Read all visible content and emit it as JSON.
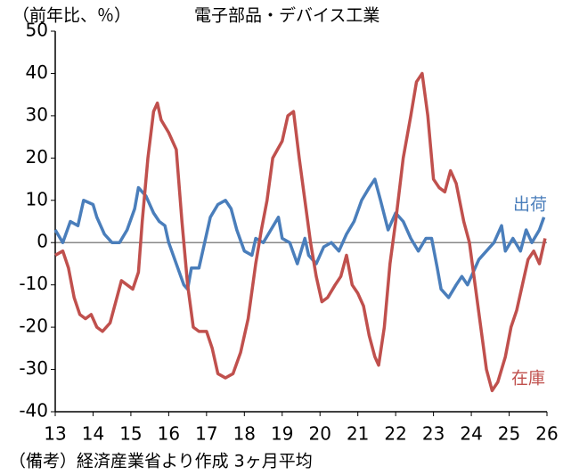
{
  "chart_data": {
    "type": "line",
    "title": "電子部品・デバイス工業",
    "y_label": "（前年比、％）",
    "note": "（備考）経済産業省より作成 3ヶ月平均",
    "xlim": [
      13,
      26
    ],
    "xticks": [
      13,
      14,
      15,
      16,
      17,
      18,
      19,
      20,
      21,
      22,
      23,
      24,
      25,
      26
    ],
    "ylim": [
      -40,
      50
    ],
    "yticks": [
      -40,
      -30,
      -20,
      -10,
      0,
      10,
      20,
      30,
      40,
      50
    ],
    "zero_line": true,
    "series": [
      {
        "name": "出荷",
        "color": "#4a7ebb",
        "x": [
          13.0,
          13.2,
          13.4,
          13.6,
          13.75,
          14.0,
          14.1,
          14.3,
          14.5,
          14.7,
          14.9,
          15.1,
          15.2,
          15.4,
          15.6,
          15.75,
          15.9,
          16.0,
          16.2,
          16.4,
          16.5,
          16.6,
          16.8,
          16.95,
          17.1,
          17.3,
          17.5,
          17.65,
          17.8,
          18.0,
          18.2,
          18.3,
          18.5,
          18.7,
          18.9,
          19.0,
          19.2,
          19.4,
          19.6,
          19.7,
          19.9,
          20.1,
          20.3,
          20.5,
          20.7,
          20.9,
          21.1,
          21.3,
          21.45,
          21.6,
          21.8,
          22.0,
          22.2,
          22.4,
          22.6,
          22.8,
          22.95,
          23.1,
          23.2,
          23.4,
          23.6,
          23.75,
          23.9,
          24.0,
          24.2,
          24.4,
          24.6,
          24.8,
          24.9,
          25.1,
          25.3,
          25.45,
          25.6,
          25.8,
          25.92
        ],
        "values": [
          3,
          0,
          5,
          4,
          10,
          9,
          6,
          2,
          0,
          0,
          3,
          8,
          13,
          11,
          7,
          5,
          4,
          0,
          -5,
          -10,
          -11,
          -6,
          -6,
          0,
          6,
          9,
          10,
          8,
          3,
          -2,
          -3,
          1,
          0,
          3,
          6,
          1,
          0,
          -5,
          1,
          -3,
          -5,
          -1,
          0,
          -2,
          2,
          5,
          10,
          13,
          15,
          10,
          3,
          7,
          5,
          1,
          -2,
          1,
          1,
          -6,
          -11,
          -13,
          -10,
          -8,
          -10,
          -8,
          -4,
          -2,
          0,
          4,
          -2,
          1,
          -2,
          3,
          0,
          3,
          6
        ]
      },
      {
        "name": "在庫",
        "color": "#c0504d",
        "x": [
          13.0,
          13.2,
          13.35,
          13.5,
          13.65,
          13.8,
          13.95,
          14.1,
          14.25,
          14.45,
          14.6,
          14.75,
          14.9,
          15.05,
          15.2,
          15.3,
          15.45,
          15.6,
          15.7,
          15.8,
          16.0,
          16.2,
          16.35,
          16.5,
          16.65,
          16.8,
          17.0,
          17.15,
          17.3,
          17.5,
          17.7,
          17.9,
          18.1,
          18.3,
          18.45,
          18.6,
          18.75,
          19.0,
          19.15,
          19.3,
          19.45,
          19.6,
          19.75,
          19.9,
          20.05,
          20.2,
          20.4,
          20.55,
          20.7,
          20.85,
          21.0,
          21.15,
          21.3,
          21.45,
          21.55,
          21.7,
          21.85,
          22.0,
          22.2,
          22.4,
          22.55,
          22.7,
          22.85,
          23.0,
          23.15,
          23.3,
          23.45,
          23.6,
          23.8,
          23.95,
          24.1,
          24.25,
          24.4,
          24.55,
          24.7,
          24.9,
          25.05,
          25.2,
          25.35,
          25.5,
          25.65,
          25.8,
          25.95
        ],
        "values": [
          -3,
          -2,
          -6,
          -13,
          -17,
          -18,
          -17,
          -20,
          -21,
          -19,
          -14,
          -9,
          -10,
          -11,
          -7,
          5,
          20,
          31,
          33,
          29,
          26,
          22,
          5,
          -10,
          -20,
          -21,
          -21,
          -25,
          -31,
          -32,
          -31,
          -26,
          -18,
          -5,
          3,
          10,
          20,
          24,
          30,
          31,
          20,
          10,
          0,
          -8,
          -14,
          -13,
          -10,
          -8,
          -3,
          -10,
          -12,
          -15,
          -22,
          -27,
          -29,
          -20,
          -5,
          5,
          20,
          30,
          38,
          40,
          30,
          15,
          13,
          12,
          17,
          14,
          5,
          0,
          -10,
          -20,
          -30,
          -35,
          -33,
          -27,
          -20,
          -16,
          -10,
          -4,
          -2,
          -5,
          1
        ]
      }
    ]
  }
}
